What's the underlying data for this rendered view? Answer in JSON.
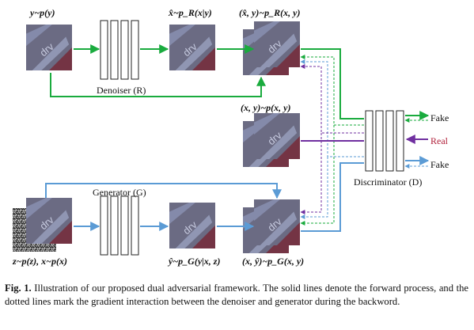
{
  "labels": {
    "y_sample": "y~p(y)",
    "x_hat": "x̂~p_R(x|y)",
    "pair_R": "(x̂, y)~p_R(x, y)",
    "pair_real": "(x, y)~p(x, y)",
    "pair_G": "(x, ŷ)~p_G(x, y)",
    "y_hat": "ŷ~p_G(y|x, z)",
    "z_x": "z~p(z), x~p(x)",
    "denoiser": "Denoiser (R)",
    "generator": "Generator (G)",
    "discriminator": "Discriminator (D)",
    "fake_top": "Fake",
    "real": "Real",
    "fake_bottom": "Fake",
    "patch_text": "drv"
  },
  "caption": {
    "label": "Fig. 1.",
    "text": " Illustration of our proposed dual adversarial framework. The solid lines denote the forward process, and the dotted lines mark the gradient interaction between the denoiser and generator during the backword."
  },
  "colors": {
    "green": "#1aab3e",
    "blue": "#5b9bd5",
    "purple": "#7030a0",
    "real_text": "#b0203a"
  }
}
